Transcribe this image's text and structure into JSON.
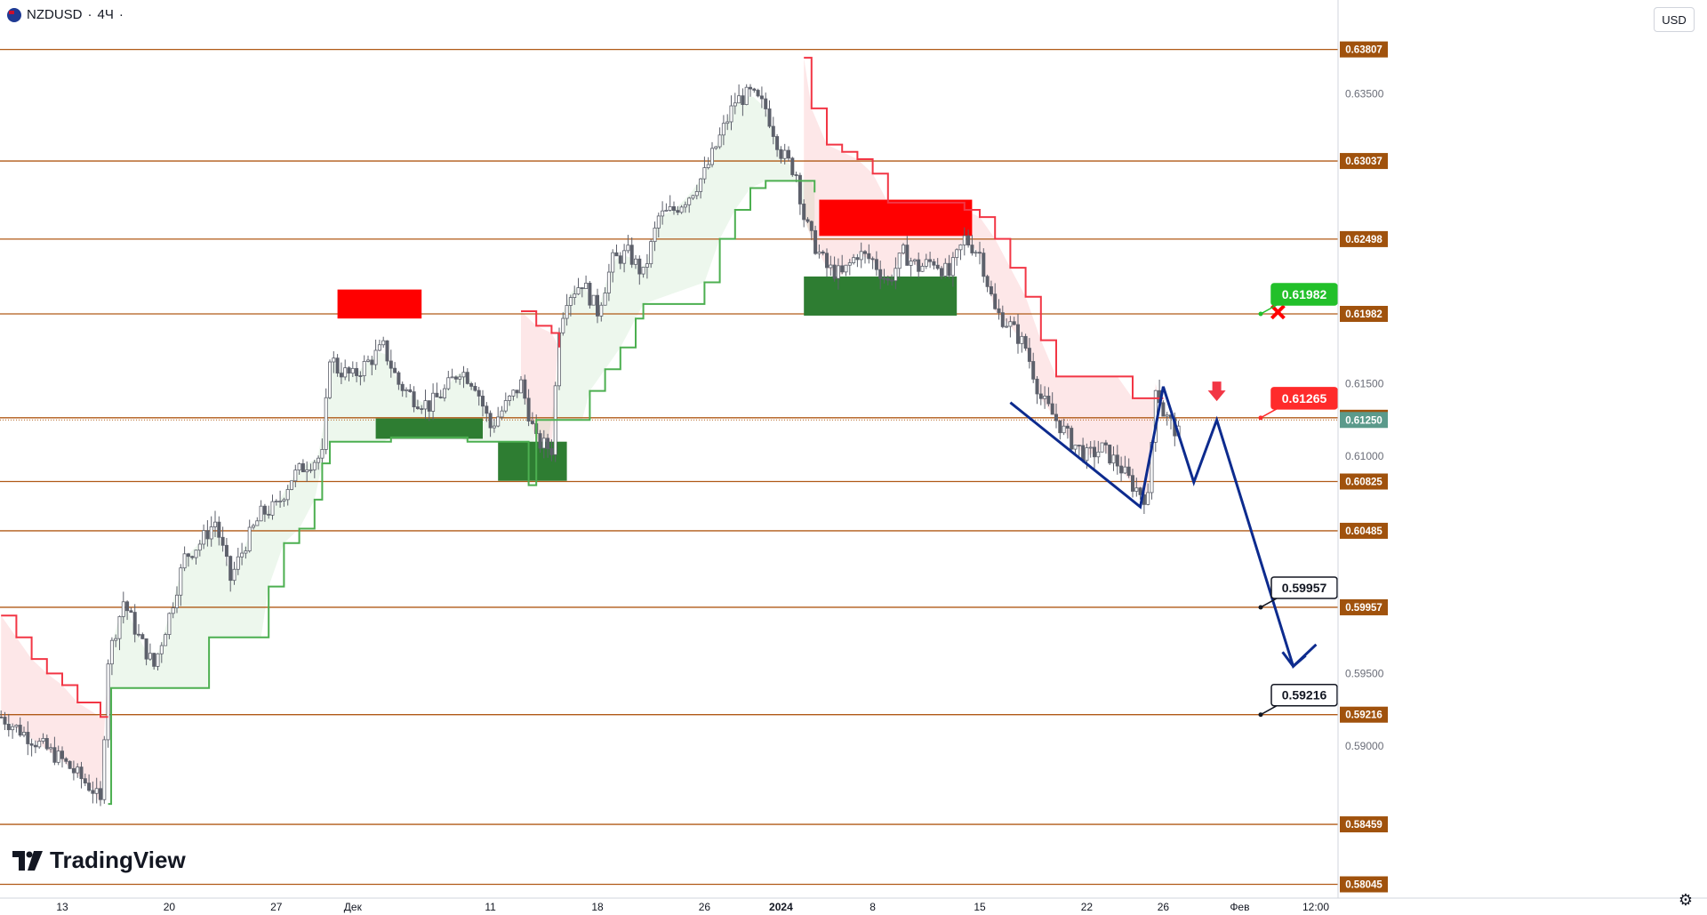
{
  "header": {
    "symbol": "NZDUSD",
    "interval": "4Ч",
    "currency": "USD"
  },
  "branding": {
    "name": "TradingView"
  },
  "chart_data": {
    "type": "candlestick",
    "y_range": [
      0.5795,
      0.6405
    ],
    "y_ticks": [
      0.635,
      0.615,
      0.61,
      0.595,
      0.59
    ],
    "y_tick_labels": [
      "0.63500",
      "0.61500",
      "0.61000",
      "0.59500",
      "0.59000"
    ],
    "x_ticks": [
      {
        "label": "13",
        "x": 0
      },
      {
        "label": "20",
        "x": 7
      },
      {
        "label": "27",
        "x": 14
      },
      {
        "label": "Дек",
        "x": 19
      },
      {
        "label": "11",
        "x": 28
      },
      {
        "label": "18",
        "x": 35
      },
      {
        "label": "26",
        "x": 42
      },
      {
        "label": "2024",
        "x": 47
      },
      {
        "label": "8",
        "x": 53
      },
      {
        "label": "15",
        "x": 60
      },
      {
        "label": "22",
        "x": 67
      },
      {
        "label": "26",
        "x": 72
      },
      {
        "label": "Фев",
        "x": 77
      },
      {
        "label": "12:00",
        "x": 82
      }
    ],
    "x_range": [
      -4,
      84
    ],
    "levels": [
      {
        "value": 0.63807,
        "label": "0.63807"
      },
      {
        "value": 0.63037,
        "label": "0.63037"
      },
      {
        "value": 0.62498,
        "label": "0.62498"
      },
      {
        "value": 0.61982,
        "label": "0.61982"
      },
      {
        "value": 0.61265,
        "label": "0.61265"
      },
      {
        "value": 0.60825,
        "label": "0.60825"
      },
      {
        "value": 0.60485,
        "label": "0.60485"
      },
      {
        "value": 0.59957,
        "label": "0.59957"
      },
      {
        "value": 0.59216,
        "label": "0.59216"
      },
      {
        "value": 0.58459,
        "label": "0.58459"
      },
      {
        "value": 0.58045,
        "label": "0.58045"
      }
    ],
    "current_price": {
      "value": 0.6125,
      "label": "0.61250",
      "color": "#5b9a8b"
    },
    "callouts": [
      {
        "value": 0.61982,
        "label": "0.61982",
        "color": "#22c02a",
        "style": "green"
      },
      {
        "value": 0.61265,
        "label": "0.61265",
        "color": "#ff2b2b",
        "style": "red"
      },
      {
        "value": 0.59957,
        "label": "0.59957",
        "color": "#131722",
        "style": "black"
      },
      {
        "value": 0.59216,
        "label": "0.59216",
        "color": "#131722",
        "style": "black"
      }
    ],
    "close_path": [
      [
        -4,
        0.592
      ],
      [
        -2,
        0.5905
      ],
      [
        0,
        0.589
      ],
      [
        1,
        0.588
      ],
      [
        2,
        0.587
      ],
      [
        2.5,
        0.586
      ],
      [
        3,
        0.596
      ],
      [
        4,
        0.6
      ],
      [
        5,
        0.5975
      ],
      [
        6,
        0.5955
      ],
      [
        7,
        0.599
      ],
      [
        8,
        0.603
      ],
      [
        9,
        0.604
      ],
      [
        10,
        0.6055
      ],
      [
        11,
        0.6015
      ],
      [
        12,
        0.604
      ],
      [
        13,
        0.606
      ],
      [
        14,
        0.6065
      ],
      [
        15,
        0.6085
      ],
      [
        16,
        0.6095
      ],
      [
        17,
        0.61
      ],
      [
        17.5,
        0.617
      ],
      [
        18,
        0.616
      ],
      [
        19,
        0.6155
      ],
      [
        20,
        0.6165
      ],
      [
        21,
        0.6175
      ],
      [
        22,
        0.615
      ],
      [
        23,
        0.614
      ],
      [
        24,
        0.6135
      ],
      [
        25,
        0.6145
      ],
      [
        26,
        0.616
      ],
      [
        27,
        0.615
      ],
      [
        28,
        0.612
      ],
      [
        29,
        0.6135
      ],
      [
        30,
        0.615
      ],
      [
        31,
        0.611
      ],
      [
        32,
        0.6105
      ],
      [
        32.5,
        0.619
      ],
      [
        33,
        0.621
      ],
      [
        34,
        0.622
      ],
      [
        35,
        0.62
      ],
      [
        36,
        0.6235
      ],
      [
        37,
        0.624
      ],
      [
        38,
        0.6225
      ],
      [
        39,
        0.6265
      ],
      [
        40,
        0.627
      ],
      [
        41,
        0.628
      ],
      [
        42,
        0.6295
      ],
      [
        43,
        0.632
      ],
      [
        44,
        0.6345
      ],
      [
        45,
        0.635
      ],
      [
        46,
        0.634
      ],
      [
        47,
        0.631
      ],
      [
        48,
        0.6295
      ],
      [
        48.5,
        0.6265
      ],
      [
        49,
        0.625
      ],
      [
        50,
        0.623
      ],
      [
        51,
        0.6225
      ],
      [
        52,
        0.624
      ],
      [
        53,
        0.6235
      ],
      [
        54,
        0.622
      ],
      [
        55,
        0.624
      ],
      [
        56,
        0.623
      ],
      [
        57,
        0.6235
      ],
      [
        58,
        0.6225
      ],
      [
        59,
        0.625
      ],
      [
        60,
        0.624
      ],
      [
        61,
        0.62
      ],
      [
        62,
        0.619
      ],
      [
        63,
        0.6175
      ],
      [
        64,
        0.614
      ],
      [
        65,
        0.6125
      ],
      [
        66,
        0.611
      ],
      [
        67,
        0.61
      ],
      [
        68,
        0.6105
      ],
      [
        69,
        0.6095
      ],
      [
        70,
        0.608
      ],
      [
        71,
        0.607
      ],
      [
        71.5,
        0.615
      ],
      [
        72,
        0.613
      ],
      [
        73,
        0.6115
      ]
    ],
    "support_line": [
      [
        3,
        0.586
      ],
      [
        3.2,
        0.594
      ],
      [
        9.5,
        0.594
      ],
      [
        9.6,
        0.5975
      ],
      [
        13,
        0.5975
      ],
      [
        13.5,
        0.601
      ],
      [
        14.5,
        0.604
      ],
      [
        15.5,
        0.605
      ],
      [
        16.5,
        0.607
      ],
      [
        17,
        0.6095
      ],
      [
        17.5,
        0.611
      ],
      [
        21,
        0.611
      ],
      [
        21.5,
        0.6113
      ],
      [
        26,
        0.6113
      ],
      [
        26.5,
        0.611
      ],
      [
        29,
        0.611
      ],
      [
        30.5,
        0.608
      ],
      [
        31,
        0.6125
      ],
      [
        34,
        0.6125
      ],
      [
        34.5,
        0.6145
      ],
      [
        35.5,
        0.616
      ],
      [
        36.5,
        0.6175
      ],
      [
        37.5,
        0.6195
      ],
      [
        38,
        0.6205
      ],
      [
        42,
        0.622
      ],
      [
        43,
        0.625
      ],
      [
        44,
        0.627
      ],
      [
        45,
        0.6285
      ],
      [
        46,
        0.629
      ],
      [
        49,
        0.629
      ],
      [
        49.2,
        0.6282
      ]
    ],
    "resistance_line": [
      [
        -4,
        0.599
      ],
      [
        -3,
        0.5975
      ],
      [
        -2,
        0.596
      ],
      [
        -1,
        0.595
      ],
      [
        0,
        0.5942
      ],
      [
        1,
        0.593
      ],
      [
        2.5,
        0.592
      ],
      [
        3,
        0.592
      ],
      [
        30,
        0.62
      ],
      [
        31,
        0.619
      ],
      [
        32,
        0.6185
      ],
      [
        32.5,
        0.6175
      ],
      [
        48.5,
        0.6375
      ],
      [
        49,
        0.634
      ],
      [
        50,
        0.6315
      ],
      [
        51,
        0.631
      ],
      [
        52,
        0.6305
      ],
      [
        53,
        0.6295
      ],
      [
        54,
        0.6275
      ],
      [
        58,
        0.6275
      ],
      [
        59,
        0.627
      ],
      [
        60,
        0.6265
      ],
      [
        61,
        0.625
      ],
      [
        62,
        0.623
      ],
      [
        63,
        0.621
      ],
      [
        64,
        0.618
      ],
      [
        65,
        0.6155
      ],
      [
        69,
        0.6155
      ],
      [
        70,
        0.614
      ],
      [
        72,
        0.614
      ]
    ],
    "zones": [
      {
        "color": "#ff0000",
        "x0": 18,
        "x1": 23.5,
        "y0": 0.6215,
        "y1": 0.6195
      },
      {
        "color": "#2e7d32",
        "x0": 20.5,
        "x1": 27.5,
        "y0": 0.6126,
        "y1": 0.6112
      },
      {
        "color": "#2e7d32",
        "x0": 28.5,
        "x1": 33,
        "y0": 0.611,
        "y1": 0.6083
      },
      {
        "color": "#ff0000",
        "x0": 49.5,
        "x1": 59.5,
        "y0": 0.6277,
        "y1": 0.6252
      },
      {
        "color": "#2e7d32",
        "x0": 48.5,
        "x1": 58.5,
        "y0": 0.6224,
        "y1": 0.6197
      }
    ],
    "projection": [
      [
        62,
        0.6137
      ],
      [
        70.5,
        0.6065
      ],
      [
        72,
        0.6148
      ],
      [
        74,
        0.6082
      ],
      [
        75.5,
        0.6125
      ],
      [
        80.5,
        0.5955
      ],
      [
        82,
        0.597
      ]
    ],
    "markers": [
      {
        "type": "cross",
        "x": 79.5,
        "value": 0.61995,
        "color": "#ff0000"
      },
      {
        "type": "down-arrow",
        "x": 75.5,
        "value": 0.6138,
        "color": "#f23645"
      }
    ]
  }
}
